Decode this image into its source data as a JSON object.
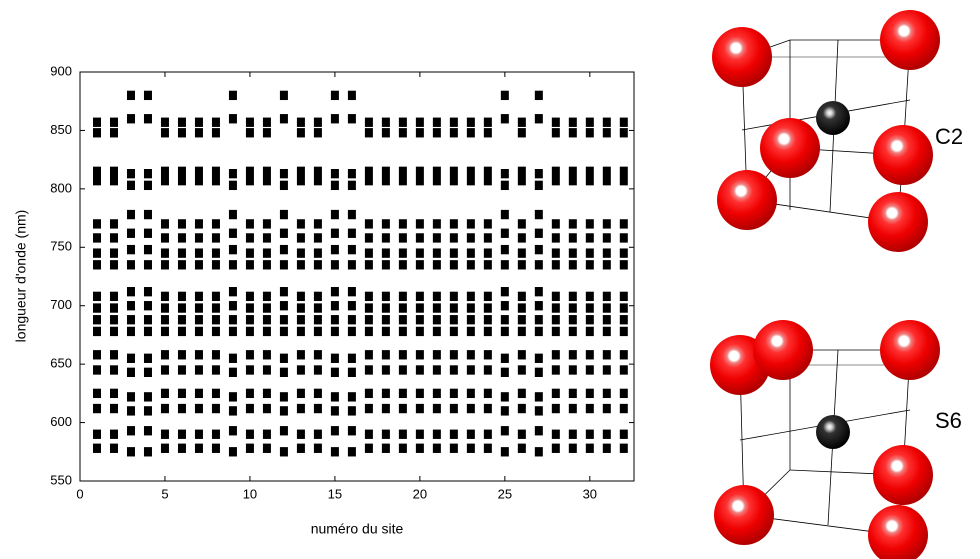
{
  "chart_data": {
    "type": "scatter",
    "xlabel": "numéro du site",
    "ylabel": "longueur d'onde (nm)",
    "xlim": [
      0,
      32.6
    ],
    "xticks": [
      0,
      5,
      10,
      15,
      20,
      25,
      30
    ],
    "ylim": [
      550,
      900
    ],
    "yticks": [
      550,
      600,
      650,
      700,
      750,
      800,
      850,
      900
    ],
    "color": "#000000",
    "annotations": [
      "C2",
      "S6"
    ],
    "x": [
      1,
      2,
      3,
      4,
      5,
      6,
      7,
      8,
      9,
      10,
      11,
      12,
      13,
      14,
      15,
      16,
      17,
      18,
      19,
      20,
      21,
      22,
      23,
      24,
      25,
      26,
      27,
      28,
      29,
      30,
      31,
      32
    ],
    "values": [
      [
        857,
        848,
        815,
        807,
        770,
        758,
        745,
        735,
        708,
        698,
        688,
        678,
        658,
        645,
        625,
        612,
        590,
        578
      ],
      [
        857,
        848,
        815,
        807,
        770,
        758,
        745,
        735,
        708,
        698,
        688,
        678,
        658,
        645,
        625,
        612,
        590,
        578
      ],
      [
        880,
        860,
        813,
        803,
        778,
        762,
        748,
        735,
        712,
        700,
        688,
        678,
        655,
        643,
        622,
        610,
        593,
        575
      ],
      [
        880,
        860,
        813,
        803,
        778,
        762,
        748,
        735,
        712,
        700,
        688,
        678,
        655,
        643,
        622,
        610,
        593,
        575
      ],
      [
        857,
        848,
        815,
        807,
        770,
        758,
        745,
        735,
        708,
        698,
        688,
        678,
        658,
        645,
        625,
        612,
        590,
        578
      ],
      [
        857,
        848,
        815,
        807,
        770,
        758,
        745,
        735,
        708,
        698,
        688,
        678,
        658,
        645,
        625,
        612,
        590,
        578
      ],
      [
        857,
        848,
        815,
        807,
        770,
        758,
        745,
        735,
        708,
        698,
        688,
        678,
        658,
        645,
        625,
        612,
        590,
        578
      ],
      [
        857,
        848,
        815,
        807,
        770,
        758,
        745,
        735,
        708,
        698,
        688,
        678,
        658,
        645,
        625,
        612,
        590,
        578
      ],
      [
        880,
        860,
        813,
        803,
        778,
        762,
        748,
        735,
        712,
        700,
        688,
        678,
        655,
        643,
        622,
        610,
        593,
        575
      ],
      [
        857,
        848,
        815,
        807,
        770,
        758,
        745,
        735,
        708,
        698,
        688,
        678,
        658,
        645,
        625,
        612,
        590,
        578
      ],
      [
        857,
        848,
        815,
        807,
        770,
        758,
        745,
        735,
        708,
        698,
        688,
        678,
        658,
        645,
        625,
        612,
        590,
        578
      ],
      [
        880,
        860,
        813,
        803,
        778,
        762,
        748,
        735,
        712,
        700,
        688,
        678,
        655,
        643,
        622,
        610,
        593,
        575
      ],
      [
        857,
        848,
        815,
        807,
        770,
        758,
        745,
        735,
        708,
        698,
        688,
        678,
        658,
        645,
        625,
        612,
        590,
        578
      ],
      [
        857,
        848,
        815,
        807,
        770,
        758,
        745,
        735,
        708,
        698,
        688,
        678,
        658,
        645,
        625,
        612,
        590,
        578
      ],
      [
        880,
        860,
        813,
        803,
        778,
        762,
        748,
        735,
        712,
        700,
        688,
        678,
        655,
        643,
        622,
        610,
        593,
        575
      ],
      [
        880,
        860,
        813,
        803,
        778,
        762,
        748,
        735,
        712,
        700,
        688,
        678,
        655,
        643,
        622,
        610,
        593,
        575
      ],
      [
        857,
        848,
        815,
        807,
        770,
        758,
        745,
        735,
        708,
        698,
        688,
        678,
        658,
        645,
        625,
        612,
        590,
        578
      ],
      [
        857,
        848,
        815,
        807,
        770,
        758,
        745,
        735,
        708,
        698,
        688,
        678,
        658,
        645,
        625,
        612,
        590,
        578
      ],
      [
        857,
        848,
        815,
        807,
        770,
        758,
        745,
        735,
        708,
        698,
        688,
        678,
        658,
        645,
        625,
        612,
        590,
        578
      ],
      [
        857,
        848,
        815,
        807,
        770,
        758,
        745,
        735,
        708,
        698,
        688,
        678,
        658,
        645,
        625,
        612,
        590,
        578
      ],
      [
        857,
        848,
        815,
        807,
        770,
        758,
        745,
        735,
        708,
        698,
        688,
        678,
        658,
        645,
        625,
        612,
        590,
        578
      ],
      [
        857,
        848,
        815,
        807,
        770,
        758,
        745,
        735,
        708,
        698,
        688,
        678,
        658,
        645,
        625,
        612,
        590,
        578
      ],
      [
        857,
        848,
        815,
        807,
        770,
        758,
        745,
        735,
        708,
        698,
        688,
        678,
        658,
        645,
        625,
        612,
        590,
        578
      ],
      [
        857,
        848,
        815,
        807,
        770,
        758,
        745,
        735,
        708,
        698,
        688,
        678,
        658,
        645,
        625,
        612,
        590,
        578
      ],
      [
        880,
        860,
        813,
        803,
        778,
        762,
        748,
        735,
        712,
        700,
        688,
        678,
        655,
        643,
        622,
        610,
        593,
        575
      ],
      [
        857,
        848,
        815,
        807,
        770,
        758,
        745,
        735,
        708,
        698,
        688,
        678,
        658,
        645,
        625,
        612,
        590,
        578
      ],
      [
        880,
        860,
        813,
        803,
        778,
        762,
        748,
        735,
        712,
        700,
        688,
        678,
        655,
        643,
        622,
        610,
        593,
        575
      ],
      [
        857,
        848,
        815,
        807,
        770,
        758,
        745,
        735,
        708,
        698,
        688,
        678,
        658,
        645,
        625,
        612,
        590,
        578
      ],
      [
        857,
        848,
        815,
        807,
        770,
        758,
        745,
        735,
        708,
        698,
        688,
        678,
        658,
        645,
        625,
        612,
        590,
        578
      ],
      [
        857,
        848,
        815,
        807,
        770,
        758,
        745,
        735,
        708,
        698,
        688,
        678,
        658,
        645,
        625,
        612,
        590,
        578
      ],
      [
        857,
        848,
        815,
        807,
        770,
        758,
        745,
        735,
        708,
        698,
        688,
        678,
        658,
        645,
        625,
        612,
        590,
        578
      ],
      [
        857,
        848,
        815,
        807,
        770,
        758,
        745,
        735,
        708,
        698,
        688,
        678,
        658,
        645,
        625,
        612,
        590,
        578
      ]
    ]
  }
}
